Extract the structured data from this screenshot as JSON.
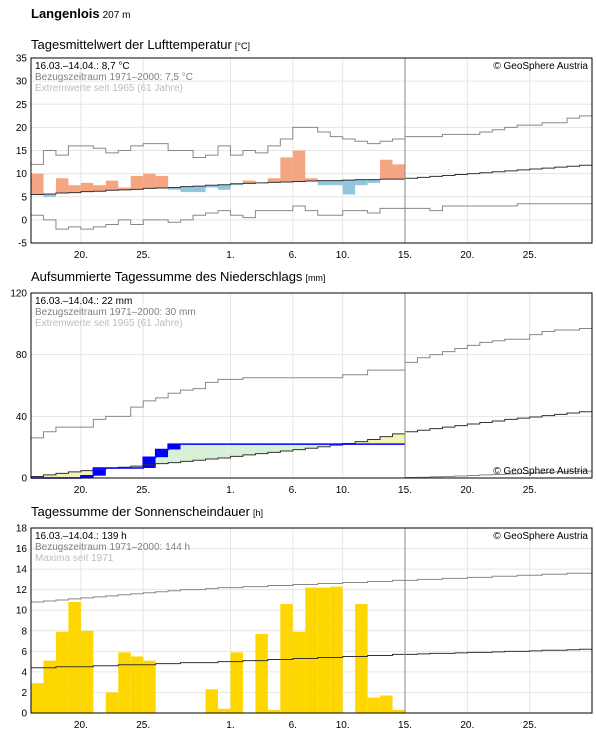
{
  "station": {
    "name": "Langenlois",
    "elevation": "207 m"
  },
  "copyright": "© GeoSphere Austria",
  "colors": {
    "warm": "#f4a582",
    "warm_extreme": "#d6604d",
    "cold": "#92c5de",
    "precip_obs": "#0000ff",
    "precip_dry": "#f6f2b3",
    "precip_wet": "#d8efd8",
    "sun": "#ffd700",
    "sun_border": "#ffffff",
    "grid": "#e6e6e6",
    "env": "#888888",
    "clim": "#333333",
    "obsline": "#000000"
  },
  "chart_data": [
    {
      "id": "temp",
      "type": "bar",
      "title": "Tagesmittelwert der Lufttemperatur",
      "unit": "[°C]",
      "info": [
        "16.03.–14.04.: 8,7 °C",
        "Bezugszeitraum 1971–2000: 7,5 °C",
        "Extremwerte seit 1965 (61 Jahre)"
      ],
      "ylim": [
        -5,
        35
      ],
      "yticks": [
        -5,
        0,
        5,
        10,
        15,
        20,
        25,
        30,
        35
      ],
      "xticks": [
        {
          "day": 4,
          "label": "20."
        },
        {
          "day": 9,
          "label": "25."
        },
        {
          "day": 16,
          "label": "1."
        },
        {
          "day": 21,
          "label": "6."
        },
        {
          "day": 25,
          "label": "10."
        },
        {
          "day": 30,
          "label": "15."
        },
        {
          "day": 35,
          "label": "20."
        },
        {
          "day": 40,
          "label": "25."
        }
      ],
      "xlim": [
        0,
        45
      ],
      "today": 30,
      "values": [
        10,
        5,
        9,
        7.5,
        8,
        7.5,
        8.5,
        7,
        9.5,
        10,
        9.5,
        6.5,
        6,
        6,
        7,
        6.5,
        7.5,
        8.5,
        8,
        9,
        13.5,
        15,
        9,
        7.5,
        7.5,
        5.5,
        7.5,
        8,
        13,
        12
      ],
      "climate": [
        5.5,
        5.6,
        5.8,
        5.9,
        6.1,
        6.2,
        6.4,
        6.5,
        6.6,
        6.8,
        6.9,
        7,
        7.2,
        7.3,
        7.5,
        7.6,
        7.8,
        7.9,
        8,
        8.1,
        8.2,
        8.3,
        8.4,
        8.5,
        8.5,
        8.6,
        8.7,
        8.7,
        8.8,
        8.8,
        9,
        9.2,
        9.4,
        9.6,
        9.8,
        10,
        10.2,
        10.4,
        10.6,
        10.8,
        11,
        11.2,
        11.4,
        11.6,
        11.8
      ],
      "max_envelope": [
        12,
        15,
        14,
        16,
        16,
        15.5,
        14.5,
        15,
        16,
        16.5,
        16.5,
        15,
        15,
        13.5,
        14,
        16,
        14,
        15,
        14.5,
        16,
        17.5,
        20,
        20,
        19,
        18,
        17.5,
        17,
        16.5,
        17,
        17.5,
        18,
        18,
        18,
        18.5,
        18.5,
        18.5,
        19,
        19.5,
        20,
        20.5,
        20.5,
        21,
        21,
        22,
        22.5
      ],
      "min_envelope": [
        1,
        0,
        -2,
        -1.5,
        -2,
        -1.5,
        -1,
        0,
        -1,
        0,
        0,
        -0.5,
        0,
        1,
        1.5,
        2,
        1,
        0.5,
        2,
        2,
        2,
        3,
        2,
        1,
        1,
        2,
        2,
        1.5,
        2.5,
        2.5,
        2.5,
        2.5,
        2,
        3,
        3,
        3,
        3,
        3,
        3,
        3.5,
        3.5,
        3.5,
        3.5,
        3.5,
        3.5
      ]
    },
    {
      "id": "precip",
      "type": "area",
      "title": "Aufsummierte Tagessumme des Niederschlags",
      "unit": "[mm]",
      "info": [
        "16.03.–14.04.: 22 mm",
        "Bezugszeitraum 1971–2000: 30 mm",
        "Extremwerte seit 1965 (61 Jahre)"
      ],
      "ylim": [
        0,
        120
      ],
      "yticks": [
        0,
        40,
        80,
        120
      ],
      "xticks": [
        {
          "day": 4,
          "label": "20."
        },
        {
          "day": 9,
          "label": "25."
        },
        {
          "day": 16,
          "label": "1."
        },
        {
          "day": 21,
          "label": "6."
        },
        {
          "day": 25,
          "label": "10."
        },
        {
          "day": 30,
          "label": "15."
        },
        {
          "day": 35,
          "label": "20."
        },
        {
          "day": 40,
          "label": "25."
        }
      ],
      "xlim": [
        0,
        45
      ],
      "today": 30,
      "values": [
        0,
        0,
        0,
        0,
        1.5,
        6.5,
        6.5,
        6.5,
        6.5,
        13.5,
        18.5,
        22,
        22,
        22,
        22,
        22,
        22,
        22,
        22,
        22,
        22,
        22,
        22,
        22,
        22,
        22,
        22,
        22,
        22,
        22
      ],
      "climate": [
        1,
        2,
        3,
        4,
        4.8,
        5.5,
        6.3,
        7,
        7.7,
        8.5,
        9.3,
        10,
        10.8,
        11.5,
        12.3,
        13,
        14,
        15,
        15.8,
        16.6,
        17.5,
        18.4,
        19.3,
        20.3,
        21.3,
        22.4,
        23.6,
        25,
        26.8,
        28.6,
        30,
        31,
        32,
        33,
        34,
        35,
        36,
        37,
        38,
        38.8,
        39.6,
        40.5,
        41.3,
        42.2,
        43
      ],
      "max_envelope": [
        26,
        30,
        33,
        33,
        33,
        38,
        40,
        40,
        46,
        50,
        52,
        55,
        57,
        58,
        62,
        64,
        64,
        65,
        65,
        65,
        65,
        65,
        65,
        65,
        65,
        67,
        67,
        70,
        70,
        70,
        75,
        78,
        80,
        82,
        84,
        86,
        88,
        89,
        90,
        90,
        93,
        95,
        96,
        96,
        97
      ],
      "min_envelope": [
        0,
        0,
        0,
        0,
        0,
        0,
        0,
        0,
        0,
        0,
        0,
        0,
        0,
        0,
        0,
        0,
        0,
        0,
        0,
        0,
        0,
        0,
        0,
        0,
        0,
        0,
        0,
        0,
        0,
        0,
        0.3,
        0.5,
        0.8,
        1,
        1.3,
        1.6,
        2,
        2.3,
        2.6,
        3,
        3.3,
        3.6,
        4,
        4.3,
        4.5
      ]
    },
    {
      "id": "sun",
      "type": "bar",
      "title": "Tagessumme der Sonnenscheindauer",
      "unit": "[h]",
      "info": [
        "16.03.–14.04.: 139 h",
        "Bezugszeitraum 1971–2000: 144 h",
        "Maxima seit 1971"
      ],
      "ylim": [
        0,
        18
      ],
      "yticks": [
        0,
        2,
        4,
        6,
        8,
        10,
        12,
        14,
        16,
        18
      ],
      "xticks": [
        {
          "day": 4,
          "label": "20."
        },
        {
          "day": 9,
          "label": "25."
        },
        {
          "day": 16,
          "label": "1."
        },
        {
          "day": 21,
          "label": "6."
        },
        {
          "day": 25,
          "label": "10."
        },
        {
          "day": 30,
          "label": "15."
        },
        {
          "day": 35,
          "label": "20."
        },
        {
          "day": 40,
          "label": "25."
        }
      ],
      "xlim": [
        0,
        45
      ],
      "today": 30,
      "values": [
        2.9,
        5.1,
        7.9,
        10.8,
        8,
        0,
        2,
        5.9,
        5.5,
        5.1,
        0,
        0,
        0,
        0,
        2.3,
        0.4,
        5.9,
        0,
        7.7,
        0.3,
        10.6,
        7.9,
        12.2,
        12.2,
        12.3,
        0,
        10.6,
        1.5,
        1.7,
        0.3
      ],
      "climate": [
        4.4,
        4.4,
        4.5,
        4.5,
        4.5,
        4.6,
        4.6,
        4.7,
        4.7,
        4.7,
        4.8,
        4.8,
        4.9,
        4.9,
        4.9,
        5,
        5,
        5.1,
        5.1,
        5.2,
        5.2,
        5.3,
        5.3,
        5.4,
        5.4,
        5.5,
        5.5,
        5.6,
        5.6,
        5.7,
        5.7,
        5.75,
        5.8,
        5.8,
        5.85,
        5.9,
        5.9,
        5.95,
        6,
        6,
        6.05,
        6.1,
        6.1,
        6.15,
        6.2
      ],
      "max_envelope": [
        10.8,
        10.9,
        11,
        11.1,
        11.2,
        11.3,
        11.4,
        11.5,
        11.6,
        11.7,
        11.8,
        11.9,
        12,
        12,
        12.1,
        12.2,
        12.2,
        12.3,
        12.3,
        12.4,
        12.4,
        12.5,
        12.5,
        12.6,
        12.6,
        12.7,
        12.7,
        12.8,
        12.8,
        12.9,
        12.9,
        13,
        13,
        13.1,
        13.1,
        13.2,
        13.2,
        13.3,
        13.3,
        13.4,
        13.4,
        13.5,
        13.5,
        13.6,
        13.6
      ]
    }
  ]
}
